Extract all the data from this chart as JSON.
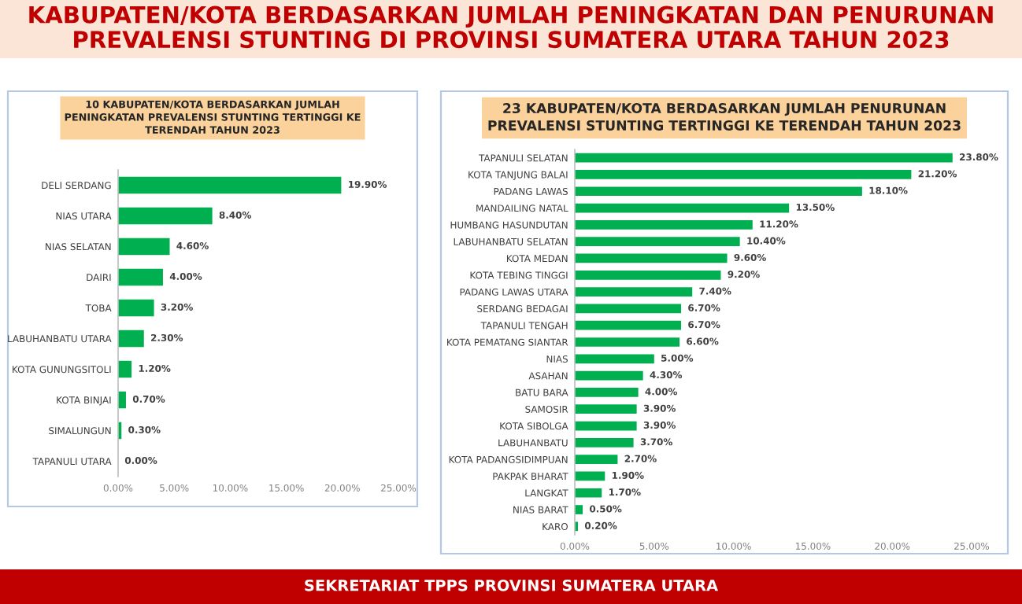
{
  "chart_data": [
    {
      "type": "bar",
      "orientation": "horizontal",
      "title": "10 KABUPATEN/KOTA BERDASARKAN JUMLAH\nPENINGKATAN PREVALENSI STUNTING TERTINGGI KE\nTERENDAH TAHUN 2023",
      "annotations": [
        "KABUPATEN/KOTA BERDASARKAN JUMLAH PENINGKATAN DAN PENURUNAN\nPREVALENSI STUNTING DI PROVINSI SUMATERA UTARA TAHUN 2023",
        "SEKRETARIAT TPPS PROVINSI SUMATERA UTARA"
      ],
      "categories": [
        "DELI SERDANG",
        "NIAS UTARA",
        "NIAS SELATAN",
        "DAIRI",
        "TOBA",
        "LABUHANBATU UTARA",
        "KOTA GUNUNGSITOLI",
        "KOTA BINJAI",
        "SIMALUNGUN",
        "TAPANULI UTARA"
      ],
      "values": [
        19.9,
        8.4,
        4.6,
        4.0,
        3.2,
        2.3,
        1.2,
        0.7,
        0.3,
        0.0
      ],
      "value_labels": [
        "19.90%",
        "8.40%",
        "4.60%",
        "4.00%",
        "3.20%",
        "2.30%",
        "1.20%",
        "0.70%",
        "0.30%",
        "0.00%"
      ],
      "color": "#00b050",
      "xlim": [
        0,
        25
      ],
      "xticks": [
        {
          "value": 0,
          "label": "0.00%"
        },
        {
          "value": 5,
          "label": "5.00%"
        },
        {
          "value": 10,
          "label": "10.00%"
        },
        {
          "value": 15,
          "label": "15.00%"
        },
        {
          "value": 20,
          "label": "20.00%"
        },
        {
          "value": 25,
          "label": "25.00%"
        }
      ],
      "grid": false,
      "legend": false
    },
    {
      "type": "bar",
      "orientation": "horizontal",
      "title": "23 KABUPATEN/KOTA BERDASARKAN JUMLAH PENURUNAN\nPREVALENSI STUNTING TERTINGGI KE TERENDAH TAHUN 2023",
      "categories": [
        "TAPANULI SELATAN",
        "KOTA TANJUNG BALAI",
        "PADANG LAWAS",
        "MANDAILING NATAL",
        "HUMBANG HASUNDUTAN",
        "LABUHANBATU SELATAN",
        "KOTA MEDAN",
        "KOTA TEBING TINGGI",
        "PADANG LAWAS UTARA",
        "SERDANG BEDAGAI",
        "TAPANULI TENGAH",
        "KOTA PEMATANG SIANTAR",
        "NIAS",
        "ASAHAN",
        "BATU BARA",
        "SAMOSIR",
        "KOTA SIBOLGA",
        "LABUHANBATU",
        "KOTA PADANGSIDIMPUAN",
        "PAKPAK BHARAT",
        "LANGKAT",
        "NIAS BARAT",
        "KARO"
      ],
      "values": [
        23.8,
        21.2,
        18.1,
        13.5,
        11.2,
        10.4,
        9.6,
        9.2,
        7.4,
        6.7,
        6.7,
        6.6,
        5.0,
        4.3,
        4.0,
        3.9,
        3.9,
        3.7,
        2.7,
        1.9,
        1.7,
        0.5,
        0.2
      ],
      "value_labels": [
        "23.80%",
        "21.20%",
        "18.10%",
        "13.50%",
        "11.20%",
        "10.40%",
        "9.60%",
        "9.20%",
        "7.40%",
        "6.70%",
        "6.70%",
        "6.60%",
        "5.00%",
        "4.30%",
        "4.00%",
        "3.90%",
        "3.90%",
        "3.70%",
        "2.70%",
        "1.90%",
        "1.70%",
        "0.50%",
        "0.20%"
      ],
      "color": "#00b050",
      "xlim": [
        0,
        25
      ],
      "xticks": [
        {
          "value": 0,
          "label": "0.00%"
        },
        {
          "value": 5,
          "label": "5.00%"
        },
        {
          "value": 10,
          "label": "10.00%"
        },
        {
          "value": 15,
          "label": "15.00%"
        },
        {
          "value": 20,
          "label": "20.00%"
        },
        {
          "value": 25,
          "label": "25.00%"
        }
      ],
      "grid": false,
      "legend": false
    }
  ]
}
